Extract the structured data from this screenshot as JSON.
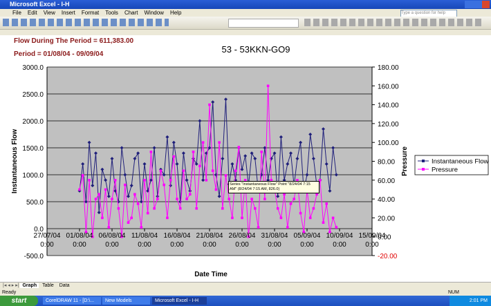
{
  "window": {
    "title": "Microsoft Excel - I-H",
    "help_box": "Type a question for help"
  },
  "menu": [
    "File",
    "Edit",
    "View",
    "Insert",
    "Format",
    "Tools",
    "Chart",
    "Window",
    "Help"
  ],
  "sheet_tabs": [
    "Graph",
    "Table",
    "Data"
  ],
  "status": {
    "left": "Ready",
    "right": "NUM"
  },
  "taskbar": {
    "start": "start",
    "items": [
      "CorelDRAW 11 - [D:\\...",
      "New Models",
      "Microsoft Excel - I-H"
    ],
    "clock": "2:01 PM"
  },
  "tooltip": "Series \"Instantaneous Flow\" Point \"8/24/04 7:15 AM\" (8/24/04 7:15 AM, 826.0)",
  "chart_data": {
    "type": "line",
    "annotations": [
      "Flow During The Period = 611,383.00",
      "Period = 01/08/04 - 09/09/04"
    ],
    "title": "53 - 53KKN-GO9",
    "x_label": "Date Time",
    "y_label": "Instantaneous Flow",
    "y2_label": "Pressure",
    "xlim": [
      "27/07/04 0:00",
      "15/09/04 0:00"
    ],
    "xticks": [
      "27/07/04 0:00",
      "01/08/04 0:00",
      "06/08/04 0:00",
      "11/08/04 0:00",
      "16/08/04 0:00",
      "21/08/04 0:00",
      "26/08/04 0:00",
      "31/08/04 0:00",
      "05/09/04 0:00",
      "10/09/04 0:00",
      "15/09/04 0:00"
    ],
    "ylim": [
      -500,
      3000
    ],
    "yticks": [
      {
        "value": -500,
        "label": "-500.0"
      },
      {
        "value": 0,
        "label": "0.0"
      },
      {
        "value": 500,
        "label": "500.0"
      },
      {
        "value": 1000,
        "label": "1000.0"
      },
      {
        "value": 1500,
        "label": "1500.0"
      },
      {
        "value": 2000,
        "label": "2000.0"
      },
      {
        "value": 2500,
        "label": "2500.0"
      },
      {
        "value": 3000,
        "label": "3000.0"
      }
    ],
    "y2lim": [
      -20,
      180
    ],
    "y2ticks": [
      {
        "value": -20,
        "label": "-20.00"
      },
      {
        "value": 0,
        "label": "0.00"
      },
      {
        "value": 20,
        "label": "20.00"
      },
      {
        "value": 40,
        "label": "40.00"
      },
      {
        "value": 60,
        "label": "60.00"
      },
      {
        "value": 80,
        "label": "80.00"
      },
      {
        "value": 100,
        "label": "100.00"
      },
      {
        "value": 120,
        "label": "120.00"
      },
      {
        "value": 140,
        "label": "140.00"
      },
      {
        "value": 160,
        "label": "160.00"
      },
      {
        "value": 180,
        "label": "180.00"
      }
    ],
    "grid": true,
    "legend": "right",
    "x": [
      "01/08/04 0:00",
      "01/08/04 12:00",
      "02/08/04 0:00",
      "02/08/04 12:00",
      "03/08/04 0:00",
      "03/08/04 12:00",
      "04/08/04 0:00",
      "04/08/04 12:00",
      "05/08/04 0:00",
      "05/08/04 12:00",
      "06/08/04 0:00",
      "06/08/04 12:00",
      "07/08/04 0:00",
      "07/08/04 12:00",
      "08/08/04 0:00",
      "08/08/04 12:00",
      "09/08/04 0:00",
      "09/08/04 12:00",
      "10/08/04 0:00",
      "10/08/04 12:00",
      "11/08/04 0:00",
      "11/08/04 12:00",
      "12/08/04 0:00",
      "12/08/04 12:00",
      "13/08/04 0:00",
      "13/08/04 12:00",
      "14/08/04 0:00",
      "14/08/04 12:00",
      "15/08/04 0:00",
      "15/08/04 12:00",
      "16/08/04 0:00",
      "16/08/04 12:00",
      "17/08/04 0:00",
      "17/08/04 12:00",
      "18/08/04 0:00",
      "18/08/04 12:00",
      "19/08/04 0:00",
      "19/08/04 12:00",
      "20/08/04 0:00",
      "20/08/04 12:00",
      "21/08/04 0:00",
      "21/08/04 12:00",
      "22/08/04 0:00",
      "22/08/04 12:00",
      "23/08/04 0:00",
      "23/08/04 12:00",
      "24/08/04 0:00",
      "24/08/04 12:00",
      "25/08/04 0:00",
      "25/08/04 12:00",
      "26/08/04 0:00",
      "26/08/04 12:00",
      "27/08/04 0:00",
      "27/08/04 12:00",
      "28/08/04 0:00",
      "28/08/04 12:00",
      "29/08/04 0:00",
      "29/08/04 12:00",
      "30/08/04 0:00",
      "30/08/04 12:00",
      "31/08/04 0:00",
      "31/08/04 12:00",
      "01/09/04 0:00",
      "01/09/04 12:00",
      "02/09/04 0:00",
      "02/09/04 12:00",
      "03/09/04 0:00",
      "03/09/04 12:00",
      "04/09/04 0:00",
      "04/09/04 12:00",
      "05/09/04 0:00",
      "05/09/04 12:00",
      "06/09/04 0:00",
      "06/09/04 12:00",
      "07/09/04 0:00",
      "07/09/04 12:00",
      "08/09/04 0:00",
      "08/09/04 12:00",
      "09/09/04 0:00",
      "09/09/04 12:00"
    ],
    "series": [
      {
        "name": "Instantaneous Flow",
        "color": "#1f1f7a",
        "values": [
          700,
          1200,
          500,
          1600,
          800,
          1400,
          300,
          1100,
          900,
          600,
          1300,
          700,
          500,
          1500,
          1000,
          600,
          800,
          1300,
          1400,
          500,
          1200,
          700,
          900,
          1500,
          600,
          1100,
          1000,
          1700,
          800,
          1600,
          1200,
          500,
          1400,
          900,
          700,
          1300,
          1200,
          2000,
          900,
          1400,
          1500,
          2350,
          1000,
          600,
          1300,
          2400,
          826,
          1200,
          900,
          1500,
          1100,
          1350,
          800,
          1400,
          1300,
          700,
          1000,
          1500,
          900,
          1300,
          1400,
          600,
          1700,
          900,
          1200,
          1400,
          800,
          1300,
          1600,
          700,
          1000,
          1750,
          1300,
          800,
          900,
          1850,
          1200,
          700,
          1500,
          1000
        ]
      },
      {
        "name": "Pressure",
        "color": "#ff00ff",
        "axis": "y2",
        "values": [
          50,
          65,
          5,
          60,
          0,
          40,
          45,
          20,
          50,
          10,
          40,
          60,
          30,
          0,
          55,
          15,
          20,
          45,
          35,
          10,
          60,
          25,
          90,
          30,
          40,
          70,
          55,
          20,
          60,
          85,
          40,
          30,
          70,
          40,
          45,
          90,
          30,
          75,
          100,
          60,
          140,
          70,
          50,
          100,
          30,
          65,
          40,
          20,
          70,
          95,
          20,
          60,
          0,
          40,
          30,
          10,
          90,
          40,
          160,
          60,
          50,
          30,
          20,
          45,
          10,
          35,
          40,
          60,
          25,
          5,
          50,
          20,
          30,
          45,
          60,
          15,
          35,
          5,
          20,
          10
        ]
      }
    ]
  }
}
